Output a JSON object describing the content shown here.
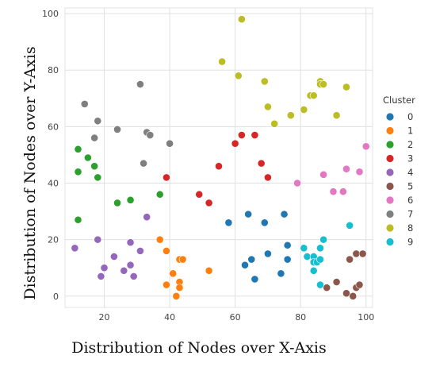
{
  "chart_data": {
    "type": "scatter",
    "xlabel": "Distribution of Nodes over X-Axis",
    "ylabel": "Distribution of Nodes over Y-Axis",
    "xlim": [
      8,
      102
    ],
    "ylim": [
      -4,
      102
    ],
    "xticks": [
      20,
      40,
      60,
      80,
      100
    ],
    "yticks": [
      0,
      20,
      40,
      60,
      80,
      100
    ],
    "grid": true,
    "legend": {
      "title": "Cluster",
      "position": "right"
    },
    "series": [
      {
        "name": "0",
        "color": "#1f77b4",
        "points": [
          [
            58,
            26
          ],
          [
            64,
            29
          ],
          [
            69,
            26
          ],
          [
            75,
            29
          ],
          [
            76,
            18
          ],
          [
            63,
            11
          ],
          [
            65,
            13
          ],
          [
            70,
            15
          ],
          [
            66,
            6
          ],
          [
            74,
            8
          ],
          [
            76,
            13
          ]
        ]
      },
      {
        "name": "1",
        "color": "#ff7f0e",
        "points": [
          [
            37,
            20
          ],
          [
            39,
            16
          ],
          [
            41,
            8
          ],
          [
            39,
            4
          ],
          [
            43,
            13
          ],
          [
            44,
            13
          ],
          [
            43,
            5
          ],
          [
            43,
            3
          ],
          [
            42,
            0
          ],
          [
            52,
            9
          ]
        ]
      },
      {
        "name": "2",
        "color": "#2ca02c",
        "points": [
          [
            12,
            52
          ],
          [
            15,
            49
          ],
          [
            17,
            46
          ],
          [
            12,
            44
          ],
          [
            18,
            42
          ],
          [
            24,
            33
          ],
          [
            28,
            34
          ],
          [
            37,
            36
          ],
          [
            12,
            27
          ]
        ]
      },
      {
        "name": "3",
        "color": "#d62728",
        "points": [
          [
            39,
            42
          ],
          [
            49,
            36
          ],
          [
            52,
            33
          ],
          [
            55,
            46
          ],
          [
            60,
            54
          ],
          [
            62,
            57
          ],
          [
            66,
            57
          ],
          [
            68,
            47
          ],
          [
            70,
            42
          ]
        ]
      },
      {
        "name": "4",
        "color": "#9467bd",
        "points": [
          [
            33,
            28
          ],
          [
            11,
            17
          ],
          [
            18,
            20
          ],
          [
            23,
            14
          ],
          [
            28,
            19
          ],
          [
            31,
            16
          ],
          [
            20,
            10
          ],
          [
            28,
            11
          ],
          [
            19,
            7
          ],
          [
            26,
            9
          ],
          [
            29,
            7
          ]
        ]
      },
      {
        "name": "5",
        "color": "#8c564b",
        "points": [
          [
            88,
            3
          ],
          [
            91,
            5
          ],
          [
            94,
            1
          ],
          [
            96,
            0
          ],
          [
            95,
            13
          ],
          [
            97,
            15
          ],
          [
            99,
            15
          ],
          [
            97,
            3
          ],
          [
            98,
            4
          ]
        ]
      },
      {
        "name": "6",
        "color": "#e377c2",
        "points": [
          [
            79,
            40
          ],
          [
            87,
            43
          ],
          [
            90,
            37
          ],
          [
            93,
            37
          ],
          [
            94,
            45
          ],
          [
            98,
            44
          ],
          [
            100,
            53
          ]
        ]
      },
      {
        "name": "7",
        "color": "#7f7f7f",
        "points": [
          [
            14,
            68
          ],
          [
            18,
            62
          ],
          [
            17,
            56
          ],
          [
            24,
            59
          ],
          [
            31,
            75
          ],
          [
            33,
            58
          ],
          [
            34,
            57
          ],
          [
            40,
            54
          ],
          [
            32,
            47
          ]
        ]
      },
      {
        "name": "8",
        "color": "#bcbd22",
        "points": [
          [
            56,
            83
          ],
          [
            61,
            78
          ],
          [
            62,
            98
          ],
          [
            69,
            76
          ],
          [
            70,
            67
          ],
          [
            72,
            61
          ],
          [
            77,
            64
          ],
          [
            81,
            66
          ],
          [
            83,
            71
          ],
          [
            84,
            71
          ],
          [
            86,
            76
          ],
          [
            86,
            75
          ],
          [
            87,
            75
          ],
          [
            91,
            64
          ],
          [
            94,
            74
          ]
        ]
      },
      {
        "name": "9",
        "color": "#17becf",
        "points": [
          [
            81,
            17
          ],
          [
            82,
            14
          ],
          [
            84,
            14
          ],
          [
            84,
            12
          ],
          [
            85,
            12
          ],
          [
            84,
            9
          ],
          [
            86,
            17
          ],
          [
            86,
            13
          ],
          [
            87,
            20
          ],
          [
            86,
            4
          ],
          [
            95,
            25
          ]
        ]
      }
    ]
  }
}
